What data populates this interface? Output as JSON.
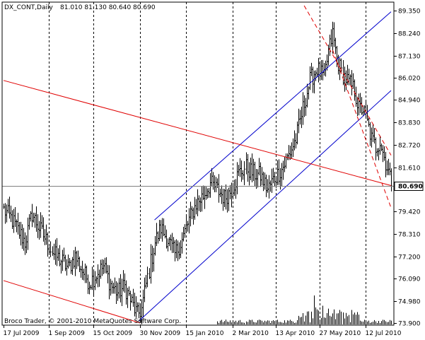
{
  "header": {
    "symbol_timeframe": "DX_CONT,Daily",
    "ohlc": "81.010 81.130 80.640 80.690"
  },
  "watermark": "Broco Trader, © 2001-2010 MetaQuotes Software Corp.",
  "colors": {
    "background": "#ffffff",
    "frame": "#000000",
    "bars": "#000000",
    "volume": "#000000",
    "grid": "#000000",
    "channel_up": "#0000cc",
    "channel_down": "#e00000",
    "price_line": "#808080",
    "price_label_bg": "#ffffff",
    "price_label_fg": "#000000"
  },
  "chart_data": {
    "type": "ohlc",
    "title": "DX_CONT,Daily",
    "y_axis": {
      "position": "right",
      "ticks": [
        89.35,
        88.24,
        87.13,
        86.02,
        84.94,
        83.83,
        82.72,
        81.61,
        80.69,
        79.42,
        78.31,
        77.2,
        76.09,
        74.98,
        73.9
      ],
      "tick_labels": [
        "89.350",
        "88.240",
        "87.130",
        "86.020",
        "84.940",
        "83.830",
        "82.720",
        "81.610",
        "80.690",
        "79.420",
        "78.310",
        "77.200",
        "76.090",
        "74.980",
        "73.900"
      ],
      "range": [
        73.9,
        89.6
      ]
    },
    "x_axis": {
      "tick_labels": [
        "17 Jul 2009",
        "1 Sep 2009",
        "15 Oct 2009",
        "30 Nov 2009",
        "15 Jan 2010",
        "2 Mar 2010",
        "13 Apr 2010",
        "27 May 2010",
        "12 Jul 2010"
      ],
      "tick_bar_index": [
        0,
        32,
        63,
        96,
        128,
        161,
        191,
        222,
        254
      ],
      "bar_count": 273
    },
    "grid": {
      "vertical": "dashed",
      "horizontal": false
    },
    "current_price": 80.69,
    "price_anchors": [
      {
        "bar": 0,
        "price": 79.5
      },
      {
        "bar": 5,
        "price": 79.1
      },
      {
        "bar": 10,
        "price": 78.5
      },
      {
        "bar": 15,
        "price": 77.9
      },
      {
        "bar": 20,
        "price": 79.3
      },
      {
        "bar": 25,
        "price": 78.6
      },
      {
        "bar": 30,
        "price": 78.0
      },
      {
        "bar": 35,
        "price": 77.3
      },
      {
        "bar": 40,
        "price": 77.0
      },
      {
        "bar": 45,
        "price": 76.6
      },
      {
        "bar": 50,
        "price": 77.2
      },
      {
        "bar": 55,
        "price": 76.5
      },
      {
        "bar": 60,
        "price": 75.9
      },
      {
        "bar": 65,
        "price": 76.3
      },
      {
        "bar": 70,
        "price": 76.7
      },
      {
        "bar": 75,
        "price": 75.8
      },
      {
        "bar": 80,
        "price": 75.4
      },
      {
        "bar": 85,
        "price": 75.7
      },
      {
        "bar": 90,
        "price": 74.9
      },
      {
        "bar": 94,
        "price": 74.3
      },
      {
        "bar": 97,
        "price": 74.6
      },
      {
        "bar": 100,
        "price": 75.8
      },
      {
        "bar": 103,
        "price": 76.9
      },
      {
        "bar": 106,
        "price": 77.9
      },
      {
        "bar": 110,
        "price": 78.6
      },
      {
        "bar": 115,
        "price": 78.0
      },
      {
        "bar": 120,
        "price": 77.3
      },
      {
        "bar": 125,
        "price": 78.0
      },
      {
        "bar": 130,
        "price": 79.0
      },
      {
        "bar": 135,
        "price": 79.8
      },
      {
        "bar": 140,
        "price": 80.2
      },
      {
        "bar": 145,
        "price": 80.8
      },
      {
        "bar": 150,
        "price": 80.5
      },
      {
        "bar": 155,
        "price": 80.1
      },
      {
        "bar": 160,
        "price": 80.5
      },
      {
        "bar": 165,
        "price": 81.3
      },
      {
        "bar": 170,
        "price": 81.6
      },
      {
        "bar": 175,
        "price": 81.3
      },
      {
        "bar": 180,
        "price": 81.2
      },
      {
        "bar": 185,
        "price": 80.5
      },
      {
        "bar": 190,
        "price": 81.1
      },
      {
        "bar": 195,
        "price": 81.5
      },
      {
        "bar": 200,
        "price": 82.2
      },
      {
        "bar": 205,
        "price": 83.0
      },
      {
        "bar": 210,
        "price": 84.5
      },
      {
        "bar": 215,
        "price": 85.9
      },
      {
        "bar": 220,
        "price": 86.5
      },
      {
        "bar": 225,
        "price": 86.0
      },
      {
        "bar": 228,
        "price": 87.3
      },
      {
        "bar": 231,
        "price": 88.2
      },
      {
        "bar": 234,
        "price": 87.0
      },
      {
        "bar": 237,
        "price": 86.3
      },
      {
        "bar": 240,
        "price": 86.0
      },
      {
        "bar": 243,
        "price": 85.7
      },
      {
        "bar": 246,
        "price": 85.4
      },
      {
        "bar": 249,
        "price": 84.5
      },
      {
        "bar": 252,
        "price": 84.5
      },
      {
        "bar": 255,
        "price": 83.8
      },
      {
        "bar": 258,
        "price": 83.0
      },
      {
        "bar": 261,
        "price": 82.6
      },
      {
        "bar": 264,
        "price": 82.9
      },
      {
        "bar": 267,
        "price": 82.1
      },
      {
        "bar": 270,
        "price": 81.4
      },
      {
        "bar": 272,
        "price": 80.69
      }
    ],
    "trendlines": [
      {
        "name": "channel-up-upper",
        "color": "#0000cc",
        "style": "solid",
        "points": [
          [
            106,
            79.0
          ],
          [
            272,
            89.3
          ]
        ]
      },
      {
        "name": "channel-up-lower",
        "color": "#0000cc",
        "style": "solid",
        "points": [
          [
            95,
            74.0
          ],
          [
            272,
            85.4
          ]
        ]
      },
      {
        "name": "channel-down-upper",
        "color": "#e00000",
        "style": "solid",
        "points": [
          [
            0,
            85.9
          ],
          [
            272,
            80.7
          ]
        ]
      },
      {
        "name": "channel-down-lower",
        "color": "#e00000",
        "style": "solid",
        "points": [
          [
            0,
            76.0
          ],
          [
            96,
            73.9
          ]
        ]
      },
      {
        "name": "dashed-down-upper",
        "color": "#e00000",
        "style": "dashed",
        "points": [
          [
            211,
            89.6
          ],
          [
            272,
            82.2
          ]
        ]
      },
      {
        "name": "dashed-down-lower",
        "color": "#e00000",
        "style": "dashed",
        "points": [
          [
            231,
            87.4
          ],
          [
            272,
            79.6
          ]
        ]
      }
    ]
  }
}
